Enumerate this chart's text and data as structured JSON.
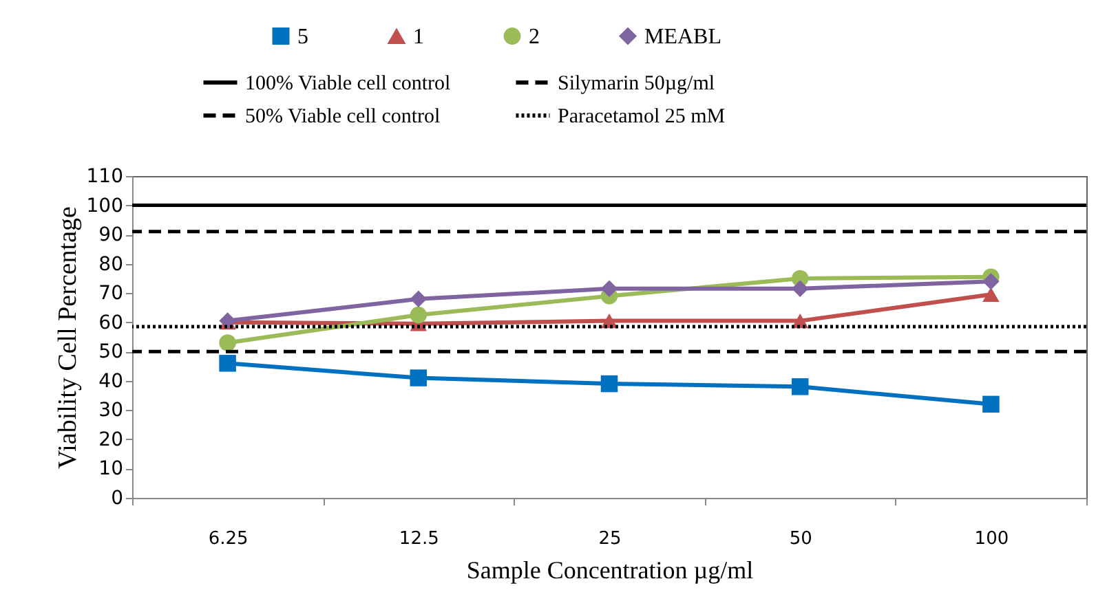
{
  "chart_data": {
    "type": "line",
    "xlabel": "Sample Concentration µg/ml",
    "ylabel": "Viability Cell Percentage",
    "categories": [
      "6.25",
      "12.5",
      "25",
      "50",
      "100"
    ],
    "series": [
      {
        "name": "5",
        "color": "#0070c0",
        "marker": "square",
        "values": [
          46,
          41,
          39,
          38,
          32
        ]
      },
      {
        "name": "1",
        "color": "#c0504d",
        "marker": "triangle",
        "values": [
          60,
          59.5,
          60.5,
          60.5,
          69.5
        ]
      },
      {
        "name": "2",
        "color": "#9bbb59",
        "marker": "circle",
        "values": [
          53,
          62.5,
          69,
          75,
          75.5
        ]
      },
      {
        "name": "MEABL",
        "color": "#8064a2",
        "marker": "diamond",
        "values": [
          60.5,
          68,
          71.5,
          71.5,
          74
        ]
      }
    ],
    "ref_lines": [
      {
        "axis": "y",
        "value": 100,
        "label": "100% Viable cell control",
        "color": "#000000",
        "line_style": "solid"
      },
      {
        "axis": "y",
        "value": 91,
        "label": "Silymarin 50µg/ml",
        "color": "#000000",
        "line_style": "dashed"
      },
      {
        "axis": "y",
        "value": 50,
        "label": "50% Viable cell control",
        "color": "#000000",
        "line_style": "dashed"
      },
      {
        "axis": "y",
        "value": 58.5,
        "label": "Paracetamol 25 mM",
        "color": "#000000",
        "line_style": "dotted"
      }
    ],
    "ylim": [
      0,
      110
    ],
    "yticks": [
      0,
      10,
      20,
      30,
      40,
      50,
      60,
      70,
      80,
      90,
      100,
      110
    ],
    "grid": false,
    "legend": "top"
  }
}
